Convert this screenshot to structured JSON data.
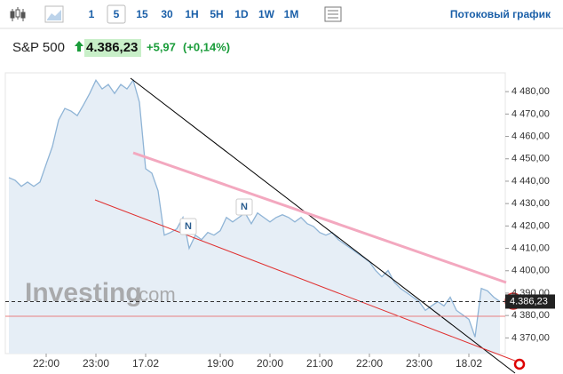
{
  "toolbar": {
    "intervals": [
      "1",
      "5",
      "15",
      "30",
      "1H",
      "5H",
      "1D",
      "1W",
      "1M"
    ],
    "stream_link": "Потоковый график"
  },
  "chart_data": {
    "type": "area",
    "title": "S&P 500",
    "price": "4.386,23",
    "change": "+5,97",
    "change_pct": "(+0,14%)",
    "watermark_main": "Investing",
    "watermark_suffix": ".com",
    "markers": [
      "N",
      "N"
    ],
    "categories": [
      null,
      null,
      null,
      null,
      null,
      null,
      "22:00",
      null,
      null,
      null,
      null,
      null,
      null,
      null,
      "23:00",
      null,
      null,
      null,
      null,
      null,
      null,
      null,
      "17.02",
      null,
      null,
      null,
      null,
      null,
      null,
      null,
      null,
      null,
      null,
      null,
      "19:00",
      null,
      null,
      null,
      null,
      null,
      null,
      null,
      "20:00",
      null,
      null,
      null,
      null,
      null,
      null,
      null,
      "21:00",
      null,
      null,
      null,
      null,
      null,
      null,
      null,
      "22:00",
      null,
      null,
      null,
      null,
      null,
      null,
      null,
      "23:00",
      null,
      null,
      null,
      null,
      null,
      null,
      null,
      "18.02",
      null,
      null,
      null,
      null,
      null
    ],
    "series": [
      {
        "name": "S&P 500",
        "color": "#8fb4d6",
        "fill": "#e6eef6",
        "values": [
          4441.6,
          4440.4,
          4437.7,
          4439.6,
          4437.7,
          4439.6,
          4447.6,
          4455.5,
          4467.3,
          4472.5,
          4471.3,
          4469.3,
          4474.1,
          4479.2,
          4485.1,
          4481.2,
          4483.2,
          4479.2,
          4483.2,
          4481.2,
          4485.1,
          4475.3,
          4445.6,
          4443.6,
          4435.7,
          4415.9,
          4417.1,
          4418.7,
          4423.8,
          4410.0,
          4415.9,
          4413.9,
          4417.1,
          4415.9,
          4417.9,
          4423.8,
          4421.8,
          4423.8,
          4425.8,
          4421.0,
          4425.8,
          4423.8,
          4421.8,
          4423.8,
          4425.0,
          4423.8,
          4421.8,
          4423.8,
          4421.0,
          4419.8,
          4417.1,
          4415.9,
          4417.1,
          4413.9,
          4411.9,
          4410.0,
          4408.0,
          4406.0,
          4404.0,
          4400.1,
          4397.3,
          4400.1,
          4394.9,
          4392.1,
          4390.2,
          4388.2,
          4386.2,
          4382.3,
          4384.3,
          4386.2,
          4384.3,
          4388.2,
          4382.3,
          4380.3,
          4378.3,
          4370.4,
          4392.1,
          4391.0,
          4388.2,
          4386.23
        ]
      }
    ],
    "ylim": [
      4363,
      4488
    ],
    "yticks": [
      {
        "value": 4370,
        "label": "4 370,00"
      },
      {
        "value": 4380,
        "label": "4 380,00"
      },
      {
        "value": 4390,
        "label": "4 390,00"
      },
      {
        "value": 4400,
        "label": "4 400,00"
      },
      {
        "value": 4410,
        "label": "4 410,00"
      },
      {
        "value": 4420,
        "label": "4 420,00"
      },
      {
        "value": 4430,
        "label": "4 430,00"
      },
      {
        "value": 4440,
        "label": "4 440,00"
      },
      {
        "value": 4450,
        "label": "4 450,00"
      },
      {
        "value": 4460,
        "label": "4 460,00"
      },
      {
        "value": 4470,
        "label": "4 470,00"
      },
      {
        "value": 4480,
        "label": "4 480,00"
      }
    ],
    "grid": false
  }
}
